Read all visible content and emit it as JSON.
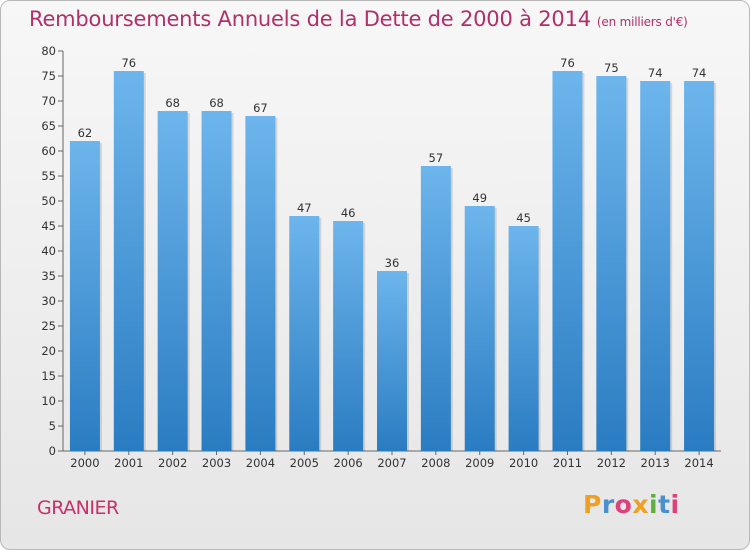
{
  "chart_data": {
    "type": "bar",
    "title": "Remboursements Annuels de la Dette de 2000 à 2014",
    "subtitle": "(en milliers d'€)",
    "categories": [
      "2000",
      "2001",
      "2002",
      "2003",
      "2004",
      "2005",
      "2006",
      "2007",
      "2008",
      "2009",
      "2010",
      "2011",
      "2012",
      "2013",
      "2014"
    ],
    "values": [
      62,
      76,
      68,
      68,
      67,
      47,
      46,
      36,
      57,
      49,
      45,
      76,
      75,
      74,
      74
    ],
    "ylim": [
      0,
      80
    ],
    "yticks": [
      0,
      5,
      10,
      15,
      20,
      25,
      30,
      35,
      40,
      45,
      50,
      55,
      60,
      65,
      70,
      75,
      80
    ],
    "xlabel": "",
    "ylabel": "",
    "grid": false
  },
  "commune": "GRANIER",
  "logo": {
    "letters": [
      "P",
      "r",
      "o",
      "x",
      "i",
      "t",
      "i"
    ],
    "colors": [
      "#f0a020",
      "#4a90d0",
      "#e0407a",
      "#f0a020",
      "#60b040",
      "#4a90d0",
      "#e0407a"
    ]
  },
  "colors": {
    "bar_light": "#6db5ec",
    "bar_dark": "#2a7cc2",
    "title": "#b0306a",
    "axis_text": "#333333"
  }
}
